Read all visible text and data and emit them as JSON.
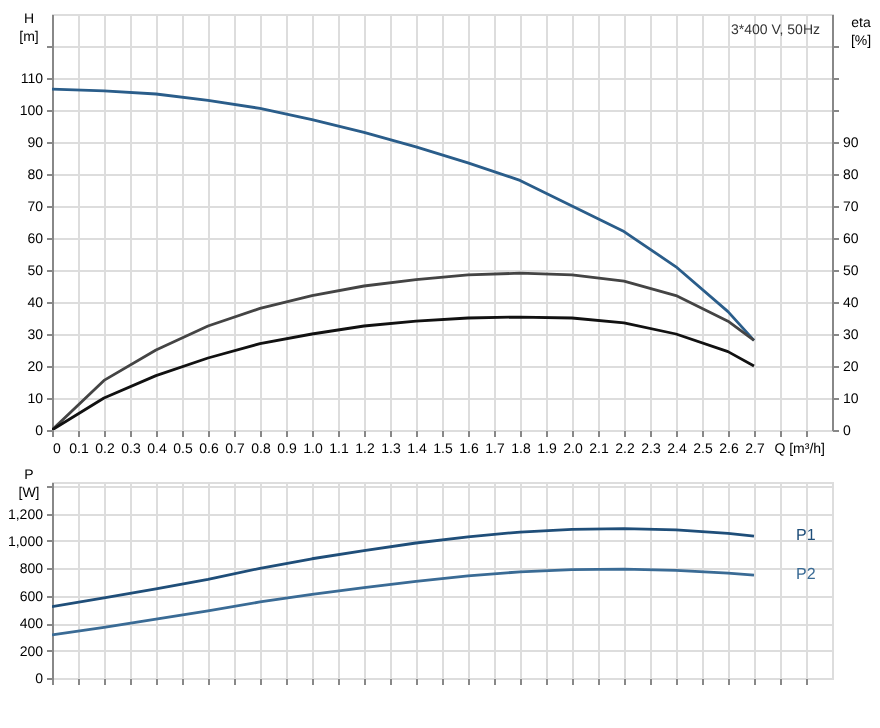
{
  "chart_data": [
    {
      "type": "line",
      "annotations": [
        "3*400 V, 50Hz"
      ],
      "xlabel": "Q [m³/h]",
      "ylabel": "H [m]",
      "y2label": "eta [%]",
      "grid": true,
      "x": [
        0,
        0.2,
        0.4,
        0.6,
        0.8,
        1.0,
        1.2,
        1.4,
        1.6,
        1.8,
        2.0,
        2.2,
        2.4,
        2.6,
        2.7
      ],
      "series": [
        {
          "color": "#2a5d8a",
          "values": [
            106.5,
            106,
            105,
            103,
            100.5,
            97,
            93,
            88.5,
            83.5,
            78,
            70,
            62,
            51,
            37,
            28
          ]
        },
        {
          "color": "#444444",
          "axis": "y2",
          "values": [
            0,
            15.5,
            25,
            32.5,
            38,
            42,
            45,
            47,
            48.5,
            49,
            48.5,
            46.5,
            42,
            34,
            28
          ]
        },
        {
          "color": "#111111",
          "axis": "y2",
          "values": [
            0,
            10,
            17,
            22.5,
            27,
            30,
            32.5,
            34,
            35,
            35.3,
            35,
            33.5,
            30,
            24.5,
            20
          ]
        }
      ],
      "xlim": [
        0,
        3.0
      ],
      "xticks": [
        0,
        0.1,
        0.2,
        0.3,
        0.4,
        0.5,
        0.6,
        0.7,
        0.8,
        0.9,
        {
          "value": 1,
          "label": "1.0"
        },
        1.1,
        1.2,
        1.3,
        1.4,
        1.5,
        1.6,
        1.7,
        1.8,
        1.9,
        {
          "value": 2,
          "label": "2.0"
        },
        2.1,
        2.2,
        2.3,
        2.4,
        2.5,
        2.6,
        2.7,
        {
          "value": 2.8,
          "label": null
        },
        {
          "value": 2.9,
          "label": null
        }
      ],
      "ylim": [
        0,
        130
      ],
      "yticks": [
        0,
        10,
        20,
        30,
        40,
        50,
        60,
        70,
        80,
        90,
        100,
        110,
        {
          "value": 120,
          "label": null
        }
      ],
      "y2lim": [
        0,
        130
      ],
      "y2ticks": [
        0,
        10,
        20,
        30,
        40,
        50,
        60,
        70,
        80,
        90,
        {
          "value": 100,
          "label": null
        },
        {
          "value": 110,
          "label": null
        },
        {
          "value": 120,
          "label": null
        }
      ]
    },
    {
      "type": "line",
      "ylabel": "P [W]",
      "grid": true,
      "tick_labels": "y",
      "x": [
        0,
        0.2,
        0.4,
        0.6,
        0.8,
        1.0,
        1.2,
        1.4,
        1.6,
        1.8,
        2.0,
        2.2,
        2.4,
        2.6,
        2.7
      ],
      "series": [
        {
          "name": "P1",
          "color": "#1f4e79",
          "values": [
            520,
            585,
            650,
            720,
            800,
            870,
            930,
            985,
            1030,
            1065,
            1085,
            1090,
            1080,
            1055,
            1035
          ]
        },
        {
          "name": "P2",
          "color": "#3a6b95",
          "values": [
            315,
            370,
            430,
            490,
            555,
            610,
            660,
            705,
            745,
            775,
            790,
            795,
            785,
            765,
            750
          ]
        }
      ],
      "xlim": [
        0,
        3.0
      ],
      "xticks": [
        0,
        0.1,
        0.2,
        0.3,
        0.4,
        0.5,
        0.6,
        0.7,
        0.8,
        0.9,
        1,
        1.1,
        1.2,
        1.3,
        1.4,
        1.5,
        1.6,
        1.7,
        1.8,
        1.9,
        2,
        2.1,
        2.2,
        2.3,
        2.4,
        2.5,
        2.6,
        2.7,
        2.8,
        2.9
      ],
      "ylim": [
        0,
        1430
      ],
      "yticks": [
        0,
        200,
        400,
        600,
        800,
        {
          "value": 1000,
          "label": "1,000"
        },
        {
          "value": 1200,
          "label": "1,200"
        },
        {
          "value": 1400,
          "label": null
        }
      ]
    }
  ]
}
